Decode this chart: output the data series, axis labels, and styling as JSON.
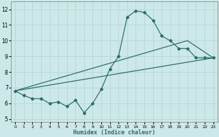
{
  "title": "",
  "xlabel": "Humidex (Indice chaleur)",
  "ylabel": "",
  "bg_color": "#cde8e8",
  "line_color": "#2a6e6a",
  "grid_color": "#b8d8d8",
  "xlim": [
    -0.5,
    23.5
  ],
  "ylim": [
    4.8,
    12.5
  ],
  "xticks": [
    0,
    1,
    2,
    3,
    4,
    5,
    6,
    7,
    8,
    9,
    10,
    11,
    12,
    13,
    14,
    15,
    16,
    17,
    18,
    19,
    20,
    21,
    22,
    23
  ],
  "yticks": [
    5,
    6,
    7,
    8,
    9,
    10,
    11,
    12
  ],
  "line1_x": [
    0,
    1,
    2,
    3,
    4,
    5,
    6,
    7,
    8,
    9,
    10,
    11,
    12,
    13,
    14,
    15,
    16,
    17,
    18,
    19,
    20,
    21,
    22,
    23
  ],
  "line1_y": [
    6.8,
    6.5,
    6.3,
    6.3,
    6.0,
    6.1,
    5.8,
    6.2,
    5.4,
    6.0,
    6.9,
    8.2,
    9.0,
    11.5,
    11.9,
    11.8,
    11.3,
    10.3,
    10.0,
    9.5,
    9.5,
    8.9,
    8.9,
    8.9
  ],
  "line2_x": [
    0,
    23
  ],
  "line2_y": [
    6.8,
    8.9
  ],
  "line3_x": [
    0,
    20,
    23
  ],
  "line3_y": [
    6.8,
    10.0,
    8.9
  ],
  "marker_size": 2.0,
  "line_width": 0.9
}
